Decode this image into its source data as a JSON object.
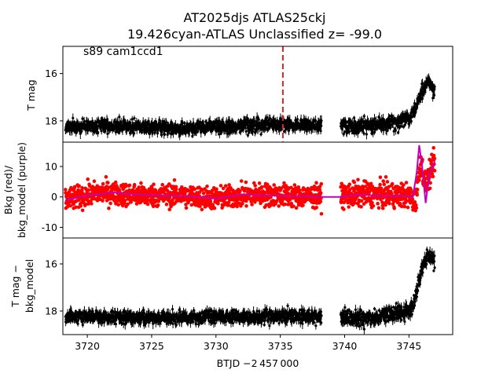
{
  "chart_data": {
    "type": "scatter",
    "title_line1": "AT2025djs  ATLAS25ckj",
    "title_line2": "19.426cyan-ATLAS Unclassified z= -99.0",
    "annotation": "s89 cam1ccd1",
    "xlabel": "BTJD −2 457 000",
    "xlim": [
      3718.1,
      3748.4
    ],
    "xticks": [
      3720,
      3725,
      3730,
      3735,
      3740,
      3745
    ],
    "event_marker_x": 3735.2,
    "colors": {
      "flux": "#000000",
      "bkg": "#ff0000",
      "bkg_model": "#bf00bf",
      "marker": "#d62728"
    },
    "panels": [
      {
        "id": "tmag",
        "ylabel": "T mag",
        "ylim": [
          18.9,
          14.85
        ],
        "yticks": [
          16,
          18
        ],
        "segments": [
          {
            "x": [
              3718.3,
              3721.0,
              3724.0,
              3727.0,
              3730.0,
              3733.0,
              3735.0,
              3738.2
            ],
            "base": [
              18.25,
              18.2,
              18.25,
              18.3,
              18.25,
              18.2,
              18.15,
              18.2
            ],
            "scatter": 0.55
          },
          {
            "x": [
              3739.7,
              3742.0,
              3744.0,
              3745.0,
              3745.5,
              3746.0,
              3746.5,
              3747.0
            ],
            "base": [
              18.25,
              18.2,
              18.1,
              17.9,
              17.5,
              16.8,
              16.3,
              16.7
            ],
            "scatter": 0.6
          }
        ]
      },
      {
        "id": "bkg",
        "ylabel_line1": "Bkg (red)/",
        "ylabel_line2": "bkg_model (purple)",
        "ylim": [
          -13.5,
          18
        ],
        "yticks": [
          -10,
          0,
          10
        ],
        "segments": [
          {
            "x": [
              3718.3,
              3721.0,
              3724.0,
              3727.0,
              3730.0,
              3733.0,
              3735.0,
              3738.2
            ],
            "base": [
              -1,
              1.5,
              0.5,
              0.5,
              -0.5,
              0.8,
              0.5,
              0
            ],
            "scatter": 7.5
          },
          {
            "x": [
              3739.7,
              3742.0,
              3744.0,
              3745.0,
              3745.5,
              3745.9,
              3746.3,
              3746.7,
              3747.0
            ],
            "base": [
              0.5,
              1.0,
              0.5,
              0.5,
              -2,
              12,
              4,
              8,
              12
            ],
            "scatter": 8
          }
        ],
        "model_line": {
          "x": [
            3718.3,
            3720,
            3722,
            3724,
            3726,
            3728,
            3730,
            3732,
            3734,
            3736,
            3738.2,
            3739.7,
            3741,
            3743,
            3744.5,
            3745.3,
            3745.6,
            3745.8,
            3746.0,
            3746.3,
            3746.6,
            3746.9,
            3747.0
          ],
          "y": [
            -1,
            0.5,
            1.5,
            0.8,
            0.5,
            0.2,
            -0.5,
            0.8,
            0.5,
            0.3,
            0,
            0,
            0.8,
            0.3,
            0.5,
            0,
            8,
            17,
            11,
            -2,
            8,
            10,
            12
          ]
        }
      },
      {
        "id": "tmag_minus_model",
        "ylabel_line1": "T mag −",
        "ylabel_line2": "bkg_model",
        "ylim": [
          19.0,
          14.9
        ],
        "yticks": [
          16,
          18
        ],
        "segments": [
          {
            "x": [
              3718.3,
              3721.0,
              3724.0,
              3727.0,
              3730.0,
              3733.0,
              3735.0,
              3738.2
            ],
            "base": [
              18.25,
              18.25,
              18.3,
              18.3,
              18.25,
              18.25,
              18.2,
              18.25
            ],
            "scatter": 0.55
          },
          {
            "x": [
              3739.7,
              3742.0,
              3744.0,
              3745.0,
              3745.5,
              3746.0,
              3746.5,
              3747.0
            ],
            "base": [
              18.3,
              18.3,
              18.1,
              18.0,
              17.5,
              16.2,
              15.6,
              15.9
            ],
            "scatter": 0.7
          }
        ]
      }
    ]
  }
}
